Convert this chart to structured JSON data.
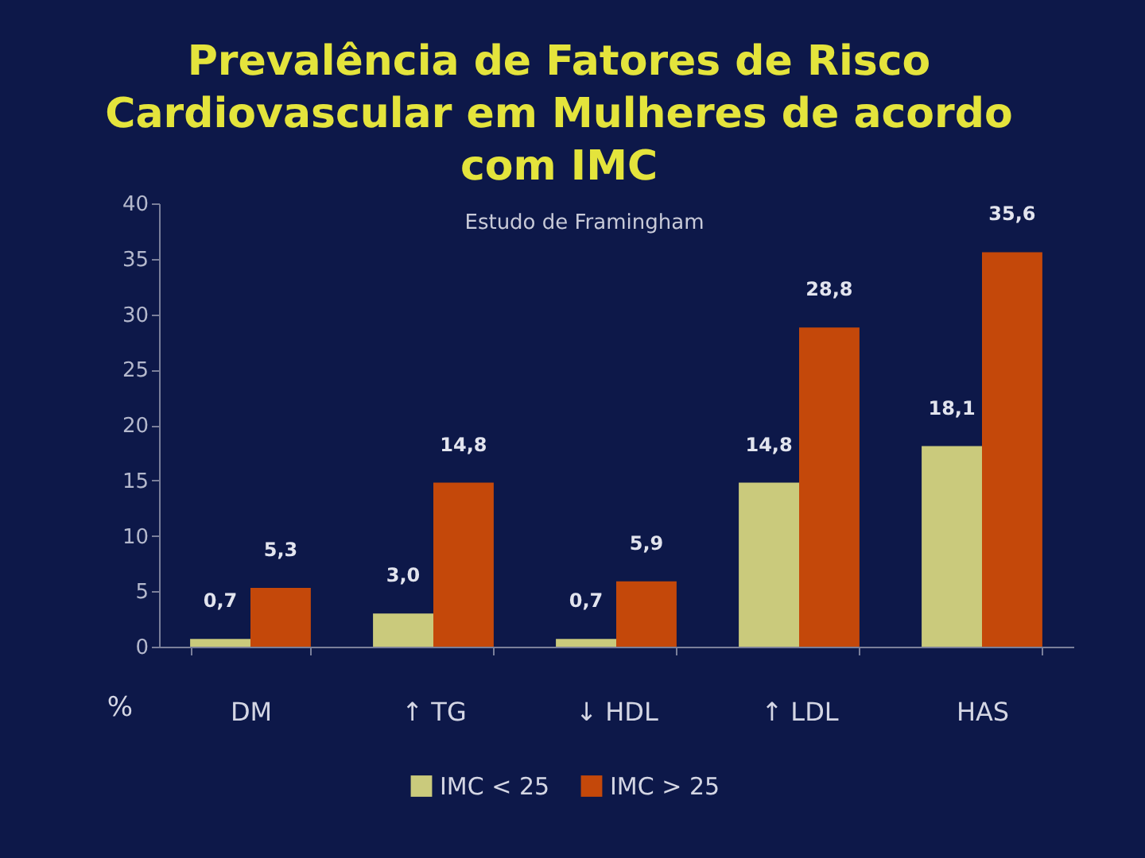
{
  "chart_data": {
    "type": "bar",
    "title": "Prevalência de Fatores de Risco Cardiovascular em Mulheres de acordo com IMC",
    "ylabel": "%",
    "annotations": [
      "Estudo de Framingham"
    ],
    "categories": [
      "DM",
      "↑ TG",
      "↓ HDL",
      "↑ LDL",
      "HAS"
    ],
    "series": [
      {
        "name": "IMC < 25",
        "color": "#caca7c",
        "values": [
          0.7,
          3.0,
          0.7,
          14.8,
          18.1
        ],
        "value_labels": [
          "0,7",
          "3,0",
          "0,7",
          "14,8",
          "18,1"
        ]
      },
      {
        "name": "IMC > 25",
        "color": "#c4480a",
        "values": [
          5.3,
          14.8,
          5.9,
          28.8,
          35.6
        ],
        "value_labels": [
          "5,3",
          "14,8",
          "5,9",
          "28,8",
          "35,6"
        ]
      }
    ],
    "ylim": [
      0,
      40
    ],
    "yticks": [
      0,
      5,
      10,
      15,
      20,
      25,
      30,
      35,
      40
    ],
    "legend": "bottom"
  }
}
